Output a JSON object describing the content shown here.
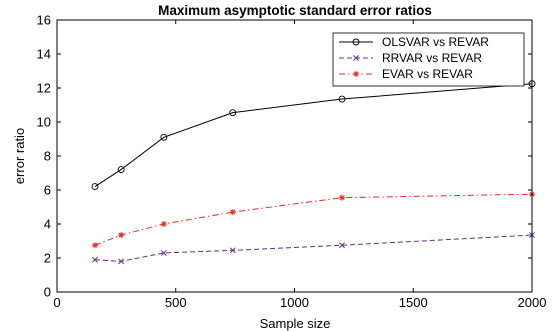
{
  "chart_data": {
    "type": "line",
    "title": "Maximum asymptotic standard error ratios",
    "xlabel": "Sample size",
    "ylabel": "error ratio",
    "xlim": [
      0,
      2000
    ],
    "ylim": [
      0,
      16
    ],
    "xticks": [
      0,
      500,
      1000,
      1500,
      2000
    ],
    "yticks": [
      0,
      2,
      4,
      6,
      8,
      10,
      12,
      14,
      16
    ],
    "grid": false,
    "legend_position": "top-right",
    "series": [
      {
        "name": "OLSVAR vs REVAR",
        "color": "#000000",
        "line_style": "solid",
        "marker": "circle",
        "x": [
          160,
          270,
          450,
          740,
          1200,
          2000
        ],
        "y": [
          6.2,
          7.2,
          9.1,
          10.55,
          11.35,
          12.25
        ]
      },
      {
        "name": "RRVAR vs REVAR",
        "color": "#6a2c8a",
        "line_style": "dashed",
        "marker": "x",
        "x": [
          160,
          270,
          450,
          740,
          1200,
          2000
        ],
        "y": [
          1.9,
          1.8,
          2.3,
          2.45,
          2.75,
          3.35
        ]
      },
      {
        "name": "EVAR vs REVAR",
        "color": "#e8281e",
        "line_style": "dashdot",
        "marker": "star",
        "x": [
          160,
          270,
          450,
          740,
          1200,
          2000
        ],
        "y": [
          2.75,
          3.35,
          4.0,
          4.7,
          5.55,
          5.75
        ]
      }
    ]
  }
}
